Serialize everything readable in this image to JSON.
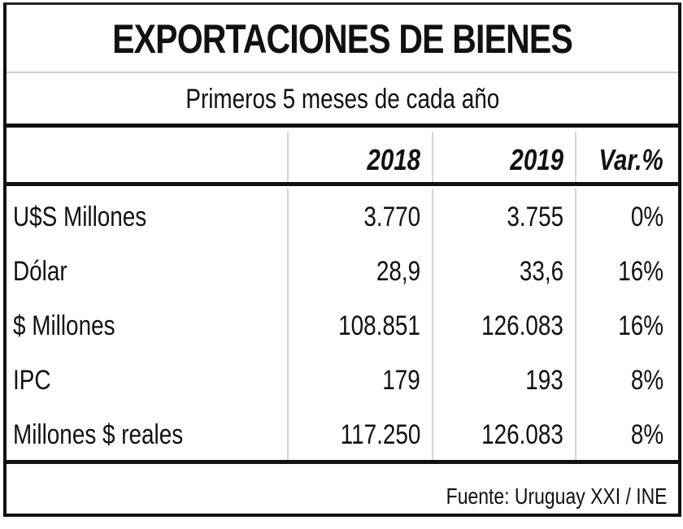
{
  "chart_data": {
    "type": "table",
    "title": "EXPORTACIONES DE BIENES",
    "subtitle": "Primeros 5 meses de cada año",
    "columns": [
      "",
      "2018",
      "2019",
      "Var.%"
    ],
    "rows": [
      {
        "label": "U$S Millones",
        "values": [
          "3.770",
          "3.755",
          "0%"
        ]
      },
      {
        "label": "Dólar",
        "values": [
          "28,9",
          "33,6",
          "16%"
        ]
      },
      {
        "label": "$ Millones",
        "values": [
          "108.851",
          "126.083",
          "16%"
        ]
      },
      {
        "label": "IPC",
        "values": [
          "179",
          "193",
          "8%"
        ]
      },
      {
        "label": "Millones $ reales",
        "values": [
          "117.250",
          "126.083",
          "8%"
        ]
      }
    ],
    "source": "Fuente: Uruguay XXI / INE"
  }
}
